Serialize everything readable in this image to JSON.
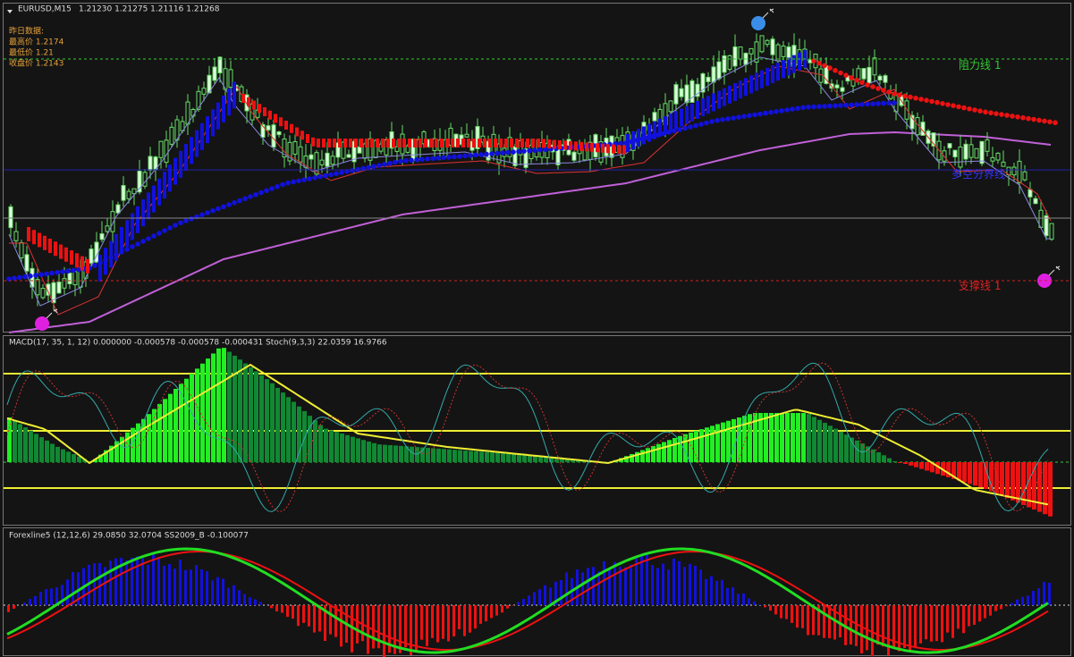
{
  "header": {
    "symbol": "EURUSD,M15",
    "quotes": "1.21230 1.21275 1.21116 1.21268"
  },
  "yesterday": {
    "title": "昨日数据:",
    "high": "最高价 1.2174",
    "low": "最低价 1.21",
    "close": "收盘价 1.2143"
  },
  "levels": {
    "resistance": "阻力线 1",
    "pivot": "多空分界线",
    "support": "支撑线 1"
  },
  "macd_panel": {
    "label": "MACD(17, 35, 1, 12) 0.000000 -0.000578 -0.000578 -0.000431  Stoch(9,3,3) 22.0359 16.9766"
  },
  "forexline_panel": {
    "label": "Forexline5 (12,12,6) 29.0850 32.0704  SS2009_B -0.100077"
  }
}
